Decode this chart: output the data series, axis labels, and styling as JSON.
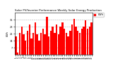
{
  "title": "Solar PV/Inverter Performance Weekly Solar Energy Production",
  "ylabel": "kWh",
  "bar_color": "#ff0000",
  "bg_color": "#ffffff",
  "plot_bg": "#ffffff",
  "grid_color": "#aaaaaa",
  "values": [
    18,
    2,
    22,
    28,
    20,
    14,
    24,
    30,
    16,
    22,
    32,
    20,
    14,
    22,
    26,
    20,
    38,
    18,
    24,
    28,
    22,
    30,
    20,
    28,
    32,
    26,
    22,
    18,
    24,
    30,
    36,
    28,
    24,
    22,
    26,
    28,
    34,
    26,
    28,
    32
  ],
  "ylim": [
    0,
    42
  ],
  "yticks": [
    7,
    14,
    21,
    28,
    35
  ],
  "legend_label": "kWh",
  "figsize": [
    1.6,
    1.0
  ],
  "dpi": 100
}
